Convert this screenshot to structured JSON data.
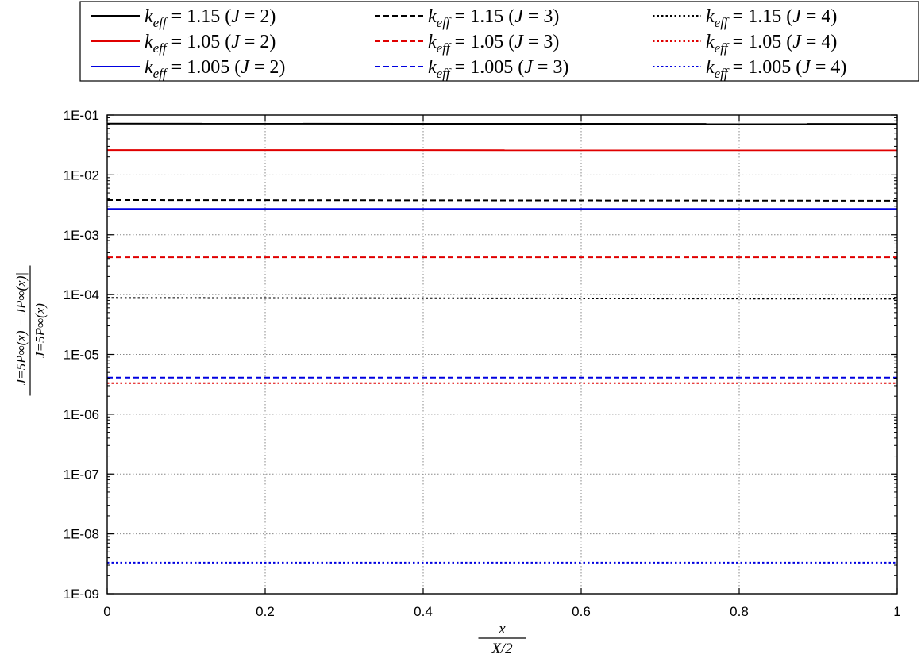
{
  "chart_data": {
    "type": "line",
    "x_range": [
      0,
      1
    ],
    "y_range": [
      1e-09,
      0.1
    ],
    "y_scale": "log",
    "grid": true,
    "legend_placement": "top (outside, above plot)",
    "x_ticks": [
      "0",
      "0.2",
      "0.4",
      "0.6",
      "0.8",
      "1"
    ],
    "y_ticks": [
      "1E-01",
      "1E-02",
      "1E-03",
      "1E-04",
      "1E-05",
      "1E-06",
      "1E-07",
      "1E-08",
      "1E-09"
    ],
    "xlabel": {
      "numerator": "x",
      "denominator": "X/2"
    },
    "ylabel": {
      "numerator": "|J=5P∞(x) − JP∞(x)|",
      "denominator": "J=5P∞(x)"
    },
    "series": [
      {
        "name": "k_eff = 1.15 (J = 2)",
        "keff": "1.15",
        "J": "2",
        "color": "#000000",
        "dash": "solid",
        "x": [
          0,
          1
        ],
        "y": [
          0.072,
          0.071
        ]
      },
      {
        "name": "k_eff = 1.15 (J = 3)",
        "keff": "1.15",
        "J": "3",
        "color": "#000000",
        "dash": "dashed",
        "x": [
          0,
          1
        ],
        "y": [
          0.0038,
          0.0037
        ]
      },
      {
        "name": "k_eff = 1.15 (J = 4)",
        "keff": "1.15",
        "J": "4",
        "color": "#000000",
        "dash": "dotted",
        "x": [
          0,
          1
        ],
        "y": [
          8.8e-05,
          8.5e-05
        ]
      },
      {
        "name": "k_eff = 1.05 (J = 2)",
        "keff": "1.05",
        "J": "2",
        "color": "#e00000",
        "dash": "solid",
        "x": [
          0,
          1
        ],
        "y": [
          0.026,
          0.0258
        ]
      },
      {
        "name": "k_eff = 1.05 (J = 3)",
        "keff": "1.05",
        "J": "3",
        "color": "#e00000",
        "dash": "dashed",
        "x": [
          0,
          1
        ],
        "y": [
          0.00042,
          0.00042
        ]
      },
      {
        "name": "k_eff = 1.05 (J = 4)",
        "keff": "1.05",
        "J": "4",
        "color": "#e00000",
        "dash": "dotted",
        "x": [
          0,
          1
        ],
        "y": [
          3.3e-06,
          3.3e-06
        ]
      },
      {
        "name": "k_eff = 1.005 (J = 2)",
        "keff": "1.005",
        "J": "2",
        "color": "#0000e0",
        "dash": "solid",
        "x": [
          0,
          1
        ],
        "y": [
          0.0027,
          0.0027
        ]
      },
      {
        "name": "k_eff = 1.005 (J = 3)",
        "keff": "1.005",
        "J": "3",
        "color": "#0000e0",
        "dash": "dashed",
        "x": [
          0,
          1
        ],
        "y": [
          4.1e-06,
          4.1e-06
        ]
      },
      {
        "name": "k_eff = 1.005 (J = 4)",
        "keff": "1.005",
        "J": "4",
        "color": "#0000e0",
        "dash": "dotted",
        "x": [
          0,
          1
        ],
        "y": [
          3.3e-09,
          3.3e-09
        ]
      }
    ]
  }
}
